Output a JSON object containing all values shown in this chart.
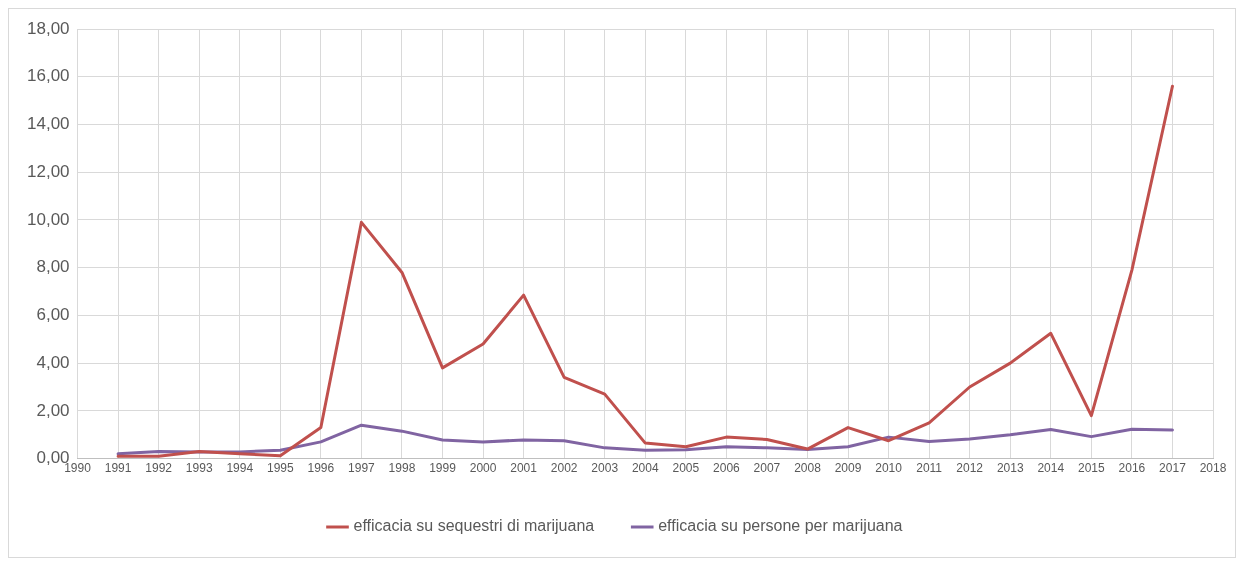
{
  "chart_data": {
    "type": "line",
    "x": [
      1991,
      1992,
      1993,
      1994,
      1995,
      1996,
      1997,
      1998,
      1999,
      2000,
      2001,
      2002,
      2003,
      2004,
      2005,
      2006,
      2007,
      2008,
      2009,
      2010,
      2011,
      2012,
      2013,
      2014,
      2015,
      2016,
      2017
    ],
    "series": [
      {
        "name": "efficacia su sequestri di marijuana",
        "color": "#c0504d",
        "values": [
          0.1,
          0.1,
          0.3,
          0.2,
          0.12,
          1.3,
          9.9,
          7.8,
          3.8,
          4.8,
          6.85,
          3.4,
          2.7,
          0.65,
          0.5,
          0.9,
          0.8,
          0.4,
          1.3,
          0.75,
          1.5,
          3.0,
          4.0,
          5.25,
          1.8,
          7.9,
          15.6
        ]
      },
      {
        "name": "efficacia su persone per marijuana",
        "color": "#8064a2",
        "values": [
          0.2,
          0.3,
          0.28,
          0.28,
          0.35,
          0.7,
          1.4,
          1.15,
          0.78,
          0.7,
          0.78,
          0.75,
          0.45,
          0.35,
          0.37,
          0.5,
          0.45,
          0.38,
          0.5,
          0.9,
          0.72,
          0.82,
          1.0,
          1.22,
          0.92,
          1.23,
          1.2
        ]
      }
    ],
    "xlim": [
      1990,
      2018
    ],
    "xticks": [
      1990,
      1991,
      1992,
      1993,
      1994,
      1995,
      1996,
      1997,
      1998,
      1999,
      2000,
      2001,
      2002,
      2003,
      2004,
      2005,
      2006,
      2007,
      2008,
      2009,
      2010,
      2011,
      2012,
      2013,
      2014,
      2015,
      2016,
      2017,
      2018
    ],
    "ylim": [
      0,
      18
    ],
    "yticks": [
      {
        "value": 0,
        "label": "0,00"
      },
      {
        "value": 2,
        "label": "2,00"
      },
      {
        "value": 4,
        "label": "4,00"
      },
      {
        "value": 6,
        "label": "6,00"
      },
      {
        "value": 8,
        "label": "8,00"
      },
      {
        "value": 10,
        "label": "10,00"
      },
      {
        "value": 12,
        "label": "12,00"
      },
      {
        "value": 14,
        "label": "14,00"
      },
      {
        "value": 16,
        "label": "16,00"
      },
      {
        "value": 18,
        "label": "18,00"
      }
    ],
    "grid": true,
    "legend": "bottom",
    "marker": "none",
    "line_style": "solid"
  }
}
